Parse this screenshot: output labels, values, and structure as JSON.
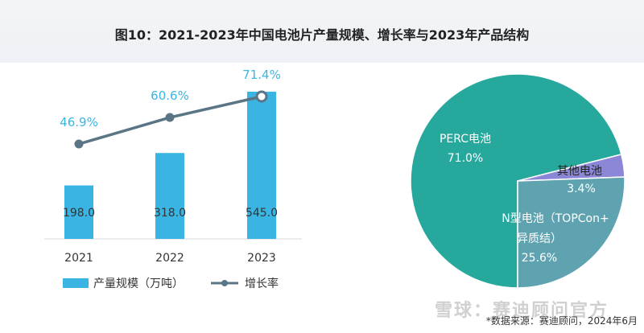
{
  "title": "图10：2021-2023年中国电池片产量规模、增长率与2023年产品结构",
  "source": "*数据来源：赛迪顾问，2024年6月",
  "watermark": "雪球：赛迪顾问官方",
  "colors": {
    "bar": "#3ab5e3",
    "line": "#5a7585",
    "growth_label": "#3ab5e3",
    "pie_perc": "#26a89d",
    "pie_other": "#8c86d6",
    "pie_n": "#5fa3b0"
  },
  "chart_data": [
    {
      "type": "bar",
      "categories": [
        "2021",
        "2022",
        "2023"
      ],
      "series": [
        {
          "name": "产量规模（万吨）",
          "type": "bar",
          "values": [
            198.0,
            318.0,
            545.0
          ],
          "labels": [
            "198.0",
            "318.0",
            "545.0"
          ]
        },
        {
          "name": "增长率",
          "type": "line",
          "values": [
            46.9,
            60.6,
            71.4
          ],
          "labels": [
            "46.9%",
            "60.6%",
            "71.4%"
          ]
        }
      ]
    },
    {
      "type": "pie",
      "slices": [
        {
          "name": "PERC电池",
          "value": 71.0,
          "label": "71.0%"
        },
        {
          "name": "其他电池",
          "value": 3.4,
          "label": "3.4%"
        },
        {
          "name": "N型电池（TOPCon+异质结）",
          "value": 25.6,
          "label": "25.6%",
          "label_lines": [
            "N型电池（TOPCon+",
            "异质结）"
          ]
        }
      ]
    }
  ]
}
